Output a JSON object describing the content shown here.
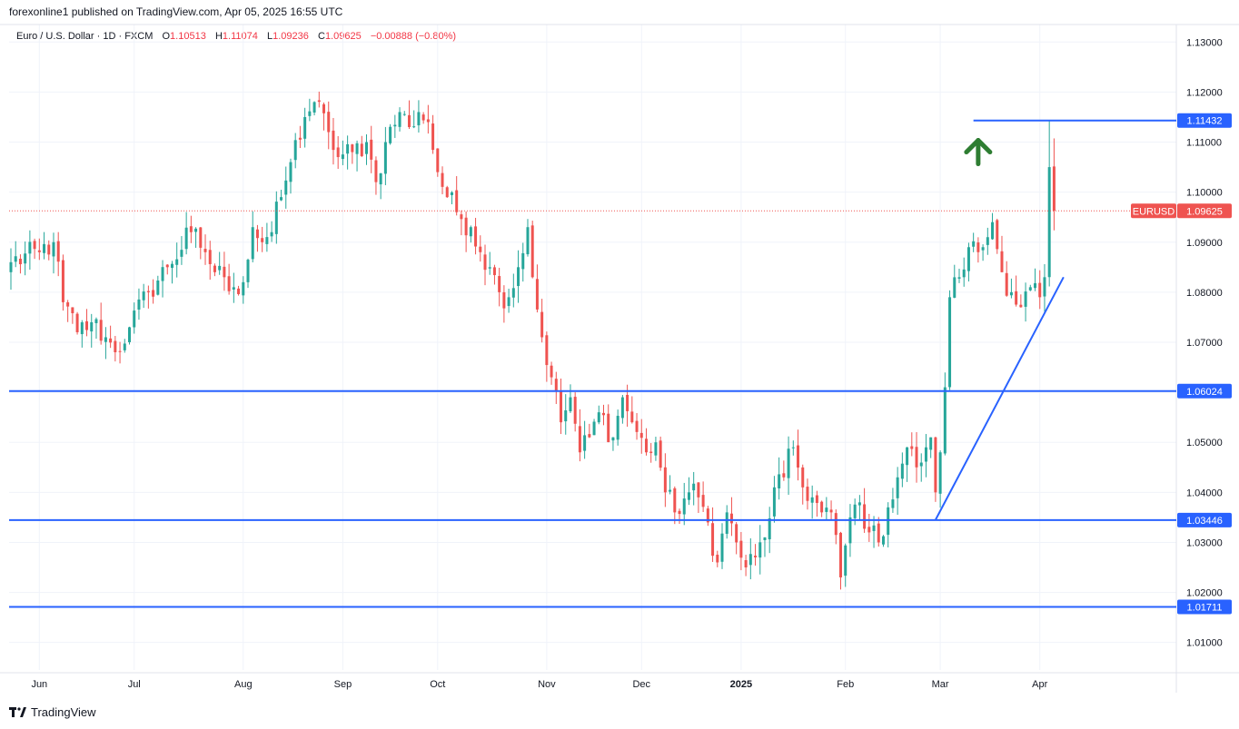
{
  "header": {
    "published": "forexonline1 published on TradingView.com, Apr 05, 2025 16:55 UTC"
  },
  "legend": {
    "symbol": "Euro / U.S. Dollar · 1D · FXCM",
    "open_label": "O",
    "open": "1.10513",
    "high_label": "H",
    "high": "1.11074",
    "low_label": "L",
    "low": "1.09236",
    "close_label": "C",
    "close": "1.09625",
    "change": "−0.00888 (−0.80%)"
  },
  "footer": {
    "brand": "TradingView"
  },
  "colors": {
    "up": "#26a69a",
    "down": "#ef5350",
    "line": "#2962ff",
    "arrow": "#2e7d32",
    "grid": "#f0f3fa",
    "axis_text": "#131722"
  },
  "chart_data": {
    "type": "candlestick",
    "title": "Euro / U.S. Dollar · 1D · FXCM",
    "ylim": [
      1.005,
      1.133
    ],
    "y_ticks": [
      "1.13000",
      "1.12000",
      "1.11000",
      "1.10000",
      "1.09000",
      "1.08000",
      "1.07000",
      "1.06000",
      "1.05000",
      "1.04000",
      "1.03000",
      "1.02000",
      "1.01000"
    ],
    "y_tick_values": [
      1.13,
      1.12,
      1.11,
      1.1,
      1.09,
      1.08,
      1.07,
      1.06,
      1.05,
      1.04,
      1.03,
      1.02,
      1.01
    ],
    "x_ticks": [
      {
        "label": "Jun",
        "day": 6,
        "bold": false
      },
      {
        "label": "Jul",
        "day": 26,
        "bold": false
      },
      {
        "label": "Aug",
        "day": 49,
        "bold": false
      },
      {
        "label": "Sep",
        "day": 70,
        "bold": false
      },
      {
        "label": "Oct",
        "day": 90,
        "bold": false
      },
      {
        "label": "Nov",
        "day": 113,
        "bold": false
      },
      {
        "label": "Dec",
        "day": 133,
        "bold": false
      },
      {
        "label": "2025",
        "day": 154,
        "bold": true
      },
      {
        "label": "Feb",
        "day": 176,
        "bold": false
      },
      {
        "label": "Mar",
        "day": 196,
        "bold": false
      },
      {
        "label": "Apr",
        "day": 217,
        "bold": false
      }
    ],
    "horizontal_levels": [
      {
        "label": "1.11432",
        "value": 1.11432,
        "from_day": 203
      },
      {
        "label": "1.06024",
        "value": 1.06024,
        "from_day": 0
      },
      {
        "label": "1.03446",
        "value": 1.03446,
        "from_day": 0
      },
      {
        "label": "1.01711",
        "value": 1.01711,
        "from_day": 0
      }
    ],
    "trendline": {
      "from": {
        "day": 195,
        "value": 1.0345
      },
      "to": {
        "day": 222,
        "value": 1.083
      }
    },
    "current_price": {
      "label": "1.09625",
      "value": 1.09625,
      "symbol": "EURUSD"
    },
    "arrow": {
      "direction": "up",
      "day": 204,
      "value": 1.108
    },
    "anchors": [
      {
        "day": 0,
        "value": 1.086
      },
      {
        "day": 6,
        "value": 1.088
      },
      {
        "day": 9,
        "value": 1.09
      },
      {
        "day": 11,
        "value": 1.078
      },
      {
        "day": 14,
        "value": 1.072
      },
      {
        "day": 17,
        "value": 1.074
      },
      {
        "day": 20,
        "value": 1.071
      },
      {
        "day": 22,
        "value": 1.068
      },
      {
        "day": 25,
        "value": 1.073
      },
      {
        "day": 29,
        "value": 1.08
      },
      {
        "day": 33,
        "value": 1.085
      },
      {
        "day": 38,
        "value": 1.092
      },
      {
        "day": 41,
        "value": 1.088
      },
      {
        "day": 43,
        "value": 1.084
      },
      {
        "day": 45,
        "value": 1.083
      },
      {
        "day": 47,
        "value": 1.081
      },
      {
        "day": 49,
        "value": 1.082
      },
      {
        "day": 51,
        "value": 1.093
      },
      {
        "day": 53,
        "value": 1.09
      },
      {
        "day": 55,
        "value": 1.092
      },
      {
        "day": 57,
        "value": 1.099
      },
      {
        "day": 59,
        "value": 1.106
      },
      {
        "day": 62,
        "value": 1.115
      },
      {
        "day": 64,
        "value": 1.118
      },
      {
        "day": 67,
        "value": 1.112
      },
      {
        "day": 69,
        "value": 1.107
      },
      {
        "day": 72,
        "value": 1.108
      },
      {
        "day": 75,
        "value": 1.11
      },
      {
        "day": 77,
        "value": 1.102
      },
      {
        "day": 79,
        "value": 1.11
      },
      {
        "day": 82,
        "value": 1.116
      },
      {
        "day": 84,
        "value": 1.113
      },
      {
        "day": 86,
        "value": 1.116
      },
      {
        "day": 88,
        "value": 1.114
      },
      {
        "day": 90,
        "value": 1.104
      },
      {
        "day": 92,
        "value": 1.099
      },
      {
        "day": 94,
        "value": 1.096
      },
      {
        "day": 97,
        "value": 1.093
      },
      {
        "day": 99,
        "value": 1.088
      },
      {
        "day": 101,
        "value": 1.085
      },
      {
        "day": 103,
        "value": 1.08
      },
      {
        "day": 105,
        "value": 1.079
      },
      {
        "day": 107,
        "value": 1.085
      },
      {
        "day": 109,
        "value": 1.093
      },
      {
        "day": 110,
        "value": 1.083
      },
      {
        "day": 112,
        "value": 1.071
      },
      {
        "day": 114,
        "value": 1.063
      },
      {
        "day": 116,
        "value": 1.054
      },
      {
        "day": 118,
        "value": 1.059
      },
      {
        "day": 120,
        "value": 1.048
      },
      {
        "day": 122,
        "value": 1.051
      },
      {
        "day": 124,
        "value": 1.056
      },
      {
        "day": 127,
        "value": 1.051
      },
      {
        "day": 129,
        "value": 1.059
      },
      {
        "day": 131,
        "value": 1.054
      },
      {
        "day": 134,
        "value": 1.048
      },
      {
        "day": 136,
        "value": 1.05
      },
      {
        "day": 138,
        "value": 1.04
      },
      {
        "day": 140,
        "value": 1.036
      },
      {
        "day": 143,
        "value": 1.04
      },
      {
        "day": 145,
        "value": 1.039
      },
      {
        "day": 147,
        "value": 1.034
      },
      {
        "day": 149,
        "value": 1.026
      },
      {
        "day": 151,
        "value": 1.036
      },
      {
        "day": 153,
        "value": 1.03
      },
      {
        "day": 155,
        "value": 1.025
      },
      {
        "day": 157,
        "value": 1.027
      },
      {
        "day": 159,
        "value": 1.031
      },
      {
        "day": 161,
        "value": 1.041
      },
      {
        "day": 163,
        "value": 1.043
      },
      {
        "day": 165,
        "value": 1.049
      },
      {
        "day": 167,
        "value": 1.041
      },
      {
        "day": 169,
        "value": 1.039
      },
      {
        "day": 171,
        "value": 1.036
      },
      {
        "day": 173,
        "value": 1.036
      },
      {
        "day": 175,
        "value": 1.023
      },
      {
        "day": 177,
        "value": 1.035
      },
      {
        "day": 179,
        "value": 1.038
      },
      {
        "day": 181,
        "value": 1.032
      },
      {
        "day": 183,
        "value": 1.03
      },
      {
        "day": 185,
        "value": 1.037
      },
      {
        "day": 187,
        "value": 1.043
      },
      {
        "day": 189,
        "value": 1.049
      },
      {
        "day": 191,
        "value": 1.045
      },
      {
        "day": 193,
        "value": 1.049
      },
      {
        "day": 194,
        "value": 1.051
      },
      {
        "day": 195,
        "value": 1.04
      },
      {
        "day": 196,
        "value": 1.048
      },
      {
        "day": 197,
        "value": 1.061
      },
      {
        "day": 198,
        "value": 1.079
      },
      {
        "day": 200,
        "value": 1.083
      },
      {
        "day": 202,
        "value": 1.089
      },
      {
        "day": 204,
        "value": 1.088
      },
      {
        "day": 206,
        "value": 1.091
      },
      {
        "day": 207,
        "value": 1.094
      },
      {
        "day": 209,
        "value": 1.084
      },
      {
        "day": 211,
        "value": 1.08
      },
      {
        "day": 213,
        "value": 1.077
      },
      {
        "day": 215,
        "value": 1.081
      },
      {
        "day": 217,
        "value": 1.079
      },
      {
        "day": 218,
        "value": 1.083
      },
      {
        "day": 219,
        "value": 1.105
      },
      {
        "day": 220,
        "value": 1.0963
      }
    ]
  }
}
